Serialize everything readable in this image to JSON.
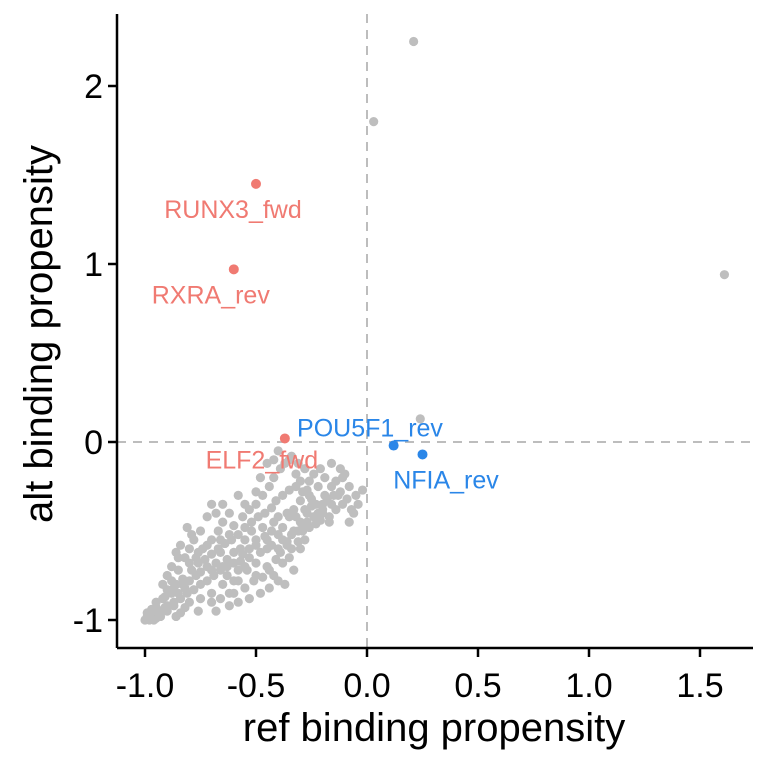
{
  "chart_data": {
    "type": "scatter",
    "title": "",
    "xlabel": "ref binding propensity",
    "ylabel": "alt binding propensity",
    "xlim": [
      -1.1,
      1.75
    ],
    "ylim": [
      -1.15,
      2.4
    ],
    "xticks": [
      -1.0,
      -0.5,
      0.0,
      0.5,
      1.0,
      1.5
    ],
    "xtick_labels": [
      "-1.0",
      "-0.5",
      "0.0",
      "0.5",
      "1.0",
      "1.5"
    ],
    "yticks": [
      -1,
      0,
      1,
      2
    ],
    "ytick_labels": [
      "-1",
      "0",
      "1",
      "2"
    ],
    "reference_lines": {
      "x": 0,
      "y": 0,
      "style": "dashed"
    },
    "colors": {
      "background": "#bebebe",
      "gain": "#f07a72",
      "loss": "#2a86e8"
    },
    "highlighted": [
      {
        "label": "RUNX3_fwd",
        "x": -0.5,
        "y": 1.45,
        "group": "gain"
      },
      {
        "label": "RXRA_rev",
        "x": -0.6,
        "y": 0.97,
        "group": "gain"
      },
      {
        "label": "ELF2_fwd",
        "x": -0.37,
        "y": 0.02,
        "group": "gain"
      },
      {
        "label": "POU5F1_rev",
        "x": 0.12,
        "y": -0.02,
        "group": "loss"
      },
      {
        "label": "NFIA_rev",
        "x": 0.25,
        "y": -0.07,
        "group": "loss"
      }
    ],
    "background_points": [
      [
        0.21,
        2.25
      ],
      [
        0.03,
        1.8
      ],
      [
        1.61,
        0.94
      ],
      [
        0.24,
        0.13
      ],
      [
        -0.1,
        -0.18
      ],
      [
        -0.13,
        -0.3
      ],
      [
        -0.16,
        -0.35
      ],
      [
        -0.08,
        -0.45
      ],
      [
        -0.17,
        -0.42
      ],
      [
        -0.2,
        -0.38
      ],
      [
        -0.22,
        -0.25
      ],
      [
        -0.27,
        -0.27
      ],
      [
        -0.3,
        -0.22
      ],
      [
        -0.32,
        -0.18
      ],
      [
        -0.35,
        -0.1
      ],
      [
        -0.4,
        -0.05
      ],
      [
        -0.45,
        -0.12
      ],
      [
        -0.48,
        -0.2
      ],
      [
        -0.5,
        -0.28
      ],
      [
        -0.25,
        -0.32
      ],
      [
        -0.28,
        -0.38
      ],
      [
        -0.3,
        -0.45
      ],
      [
        -0.33,
        -0.5
      ],
      [
        -0.35,
        -0.42
      ],
      [
        -0.38,
        -0.48
      ],
      [
        -0.4,
        -0.52
      ],
      [
        -0.42,
        -0.45
      ],
      [
        -0.45,
        -0.55
      ],
      [
        -0.47,
        -0.48
      ],
      [
        -0.5,
        -0.58
      ],
      [
        -0.52,
        -0.5
      ],
      [
        -0.55,
        -0.55
      ],
      [
        -0.57,
        -0.6
      ],
      [
        -0.6,
        -0.62
      ],
      [
        -0.62,
        -0.52
      ],
      [
        -0.65,
        -0.45
      ],
      [
        -0.68,
        -0.4
      ],
      [
        -0.7,
        -0.35
      ],
      [
        -0.72,
        -0.42
      ],
      [
        -0.75,
        -0.5
      ],
      [
        -0.78,
        -0.55
      ],
      [
        -0.8,
        -0.6
      ],
      [
        -0.82,
        -0.65
      ],
      [
        -0.85,
        -0.72
      ],
      [
        -0.88,
        -0.78
      ],
      [
        -0.9,
        -0.83
      ],
      [
        -0.92,
        -0.88
      ],
      [
        -0.95,
        -0.93
      ],
      [
        -0.97,
        -0.97
      ],
      [
        -1.0,
        -1.0
      ],
      [
        -0.99,
        -0.98
      ],
      [
        -0.96,
        -1.0
      ],
      [
        -0.93,
        -0.95
      ],
      [
        -0.9,
        -0.92
      ],
      [
        -0.87,
        -0.9
      ],
      [
        -0.85,
        -0.85
      ],
      [
        -0.82,
        -0.82
      ],
      [
        -0.8,
        -0.78
      ],
      [
        -0.77,
        -0.75
      ],
      [
        -0.75,
        -0.73
      ],
      [
        -0.72,
        -0.7
      ],
      [
        -0.7,
        -0.72
      ],
      [
        -0.68,
        -0.68
      ],
      [
        -0.65,
        -0.7
      ],
      [
        -0.63,
        -0.75
      ],
      [
        -0.6,
        -0.78
      ],
      [
        -0.58,
        -0.72
      ],
      [
        -0.55,
        -0.7
      ],
      [
        -0.53,
        -0.65
      ],
      [
        -0.5,
        -0.68
      ],
      [
        -0.48,
        -0.62
      ],
      [
        -0.45,
        -0.6
      ],
      [
        -0.43,
        -0.58
      ],
      [
        -0.4,
        -0.6
      ],
      [
        -0.38,
        -0.55
      ],
      [
        -0.36,
        -0.58
      ],
      [
        -0.34,
        -0.52
      ],
      [
        -0.31,
        -0.5
      ],
      [
        -0.29,
        -0.48
      ],
      [
        -0.27,
        -0.45
      ],
      [
        -0.24,
        -0.42
      ],
      [
        -0.22,
        -0.4
      ],
      [
        -0.2,
        -0.35
      ],
      [
        -0.18,
        -0.32
      ],
      [
        -0.15,
        -0.3
      ],
      [
        -0.12,
        -0.28
      ],
      [
        -0.09,
        -0.32
      ],
      [
        -0.06,
        -0.4
      ],
      [
        -0.3,
        -0.33
      ],
      [
        -0.33,
        -0.38
      ],
      [
        -0.36,
        -0.4
      ],
      [
        -0.4,
        -0.42
      ],
      [
        -0.43,
        -0.5
      ],
      [
        -0.46,
        -0.53
      ],
      [
        -0.5,
        -0.55
      ],
      [
        -0.53,
        -0.6
      ],
      [
        -0.56,
        -0.63
      ],
      [
        -0.6,
        -0.68
      ],
      [
        -0.63,
        -0.7
      ],
      [
        -0.66,
        -0.72
      ],
      [
        -0.69,
        -0.75
      ],
      [
        -0.72,
        -0.78
      ],
      [
        -0.75,
        -0.8
      ],
      [
        -0.78,
        -0.83
      ],
      [
        -0.81,
        -0.85
      ],
      [
        -0.84,
        -0.88
      ],
      [
        -0.87,
        -0.92
      ],
      [
        -0.9,
        -0.95
      ],
      [
        -0.93,
        -0.98
      ],
      [
        -0.95,
        -0.99
      ],
      [
        -0.98,
        -1.0
      ],
      [
        -0.94,
        -0.96
      ],
      [
        -0.91,
        -0.93
      ],
      [
        -0.88,
        -0.85
      ],
      [
        -0.86,
        -0.8
      ],
      [
        -0.83,
        -0.77
      ],
      [
        -0.79,
        -0.72
      ],
      [
        -0.76,
        -0.68
      ],
      [
        -0.73,
        -0.66
      ],
      [
        -0.7,
        -0.63
      ],
      [
        -0.67,
        -0.6
      ],
      [
        -0.64,
        -0.57
      ],
      [
        -0.61,
        -0.55
      ],
      [
        -0.58,
        -0.52
      ],
      [
        -0.55,
        -0.48
      ],
      [
        -0.52,
        -0.45
      ],
      [
        -0.49,
        -0.42
      ],
      [
        -0.46,
        -0.4
      ],
      [
        -0.43,
        -0.37
      ],
      [
        -0.41,
        -0.33
      ],
      [
        -0.38,
        -0.3
      ],
      [
        -0.35,
        -0.27
      ],
      [
        -0.32,
        -0.25
      ],
      [
        -0.29,
        -0.28
      ],
      [
        -0.26,
        -0.3
      ],
      [
        -0.23,
        -0.35
      ],
      [
        -0.2,
        -0.4
      ],
      [
        -0.17,
        -0.45
      ],
      [
        -0.14,
        -0.38
      ],
      [
        -0.11,
        -0.35
      ],
      [
        -0.07,
        -0.38
      ],
      [
        -0.04,
        -0.35
      ],
      [
        -0.85,
        -0.65
      ],
      [
        -0.8,
        -0.68
      ],
      [
        -0.76,
        -0.62
      ],
      [
        -0.72,
        -0.58
      ],
      [
        -0.66,
        -0.55
      ],
      [
        -0.6,
        -0.47
      ],
      [
        -0.56,
        -0.42
      ],
      [
        -0.53,
        -0.38
      ],
      [
        -0.5,
        -0.35
      ],
      [
        -0.47,
        -0.3
      ],
      [
        -0.44,
        -0.25
      ],
      [
        -0.42,
        -0.2
      ],
      [
        -0.7,
        -0.85
      ],
      [
        -0.65,
        -0.8
      ],
      [
        -0.62,
        -0.85
      ],
      [
        -0.58,
        -0.78
      ],
      [
        -0.55,
        -0.82
      ],
      [
        -0.5,
        -0.75
      ],
      [
        -0.45,
        -0.7
      ],
      [
        -0.42,
        -0.75
      ],
      [
        -0.38,
        -0.68
      ],
      [
        -0.35,
        -0.65
      ],
      [
        -0.3,
        -0.6
      ],
      [
        -0.28,
        -0.55
      ],
      [
        -0.8,
        -0.9
      ],
      [
        -0.75,
        -0.88
      ],
      [
        -0.7,
        -0.9
      ],
      [
        -0.66,
        -0.88
      ],
      [
        -0.6,
        -0.85
      ],
      [
        -0.58,
        -0.9
      ],
      [
        -0.53,
        -0.88
      ],
      [
        -0.48,
        -0.85
      ],
      [
        -0.44,
        -0.82
      ],
      [
        -0.4,
        -0.78
      ],
      [
        -0.37,
        -0.8
      ],
      [
        -0.33,
        -0.72
      ],
      [
        -0.92,
        -0.8
      ],
      [
        -0.9,
        -0.75
      ],
      [
        -0.88,
        -0.7
      ],
      [
        -0.86,
        -0.62
      ],
      [
        -0.84,
        -0.58
      ],
      [
        -0.95,
        -0.9
      ],
      [
        -0.97,
        -0.94
      ],
      [
        -0.99,
        -0.96
      ],
      [
        -0.91,
        -0.87
      ],
      [
        -0.89,
        -0.84
      ],
      [
        -0.87,
        -0.82
      ],
      [
        -0.83,
        -0.8
      ],
      [
        -0.26,
        -0.22
      ],
      [
        -0.24,
        -0.18
      ],
      [
        -0.21,
        -0.15
      ],
      [
        -0.19,
        -0.2
      ],
      [
        -0.16,
        -0.25
      ],
      [
        -0.14,
        -0.22
      ],
      [
        -0.11,
        -0.2
      ],
      [
        -0.08,
        -0.25
      ],
      [
        -0.05,
        -0.3
      ],
      [
        -0.02,
        -0.27
      ],
      [
        -0.12,
        -0.15
      ],
      [
        -0.16,
        -0.12
      ],
      [
        -0.28,
        -0.15
      ],
      [
        -0.31,
        -0.12
      ],
      [
        -0.34,
        -0.08
      ],
      [
        -0.37,
        -0.12
      ],
      [
        -0.39,
        -0.15
      ],
      [
        -0.42,
        -0.1
      ],
      [
        -0.55,
        -0.35
      ],
      [
        -0.58,
        -0.3
      ],
      [
        -0.62,
        -0.4
      ],
      [
        -0.65,
        -0.35
      ],
      [
        -0.67,
        -0.5
      ],
      [
        -0.74,
        -0.6
      ],
      [
        -0.77,
        -0.65
      ],
      [
        -0.79,
        -0.52
      ],
      [
        -0.81,
        -0.48
      ],
      [
        -0.7,
        -0.55
      ],
      [
        -0.66,
        -0.62
      ],
      [
        -0.63,
        -0.66
      ],
      [
        -0.57,
        -0.67
      ],
      [
        -0.54,
        -0.72
      ],
      [
        -0.51,
        -0.78
      ],
      [
        -0.47,
        -0.76
      ],
      [
        -0.44,
        -0.72
      ],
      [
        -0.41,
        -0.66
      ],
      [
        -0.39,
        -0.62
      ],
      [
        -0.36,
        -0.56
      ],
      [
        -0.34,
        -0.6
      ],
      [
        -0.31,
        -0.56
      ],
      [
        -0.29,
        -0.5
      ],
      [
        -0.26,
        -0.48
      ],
      [
        -0.23,
        -0.46
      ],
      [
        -0.21,
        -0.44
      ],
      [
        -0.19,
        -0.3
      ],
      [
        -0.25,
        -0.36
      ],
      [
        -0.27,
        -0.4
      ],
      [
        -0.32,
        -0.42
      ],
      [
        -0.68,
        -0.95
      ],
      [
        -0.62,
        -0.92
      ],
      [
        -0.76,
        -0.95
      ],
      [
        -0.84,
        -0.96
      ],
      [
        -0.86,
        -0.98
      ],
      [
        -0.82,
        -0.93
      ]
    ]
  }
}
